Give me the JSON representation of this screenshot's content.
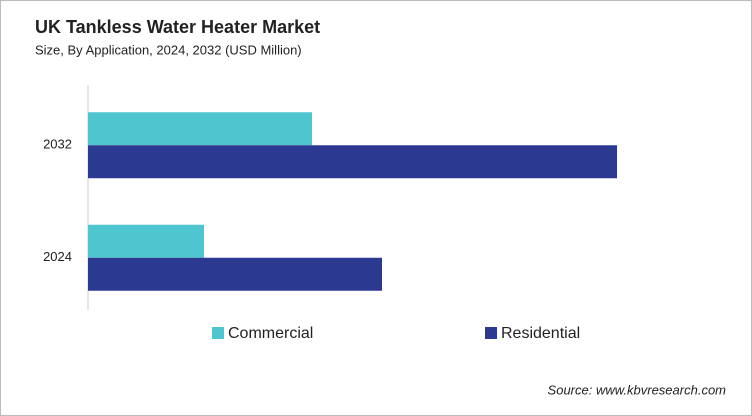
{
  "chart_data": {
    "type": "bar",
    "orientation": "horizontal",
    "title": "UK Tankless  Water Heater Market",
    "subtitle": "Size, By Application, 2024, 2032 (USD Million)",
    "categories": [
      "2032",
      "2024"
    ],
    "series": [
      {
        "name": "Commercial",
        "color": "#4fc6cf",
        "values": [
          224,
          116
        ]
      },
      {
        "name": "Residential",
        "color": "#2b3990",
        "values": [
          529,
          294
        ]
      }
    ],
    "xlim": [
      0,
      600
    ],
    "legend": "bottom",
    "source": "Source: www.kbvresearch.com"
  }
}
